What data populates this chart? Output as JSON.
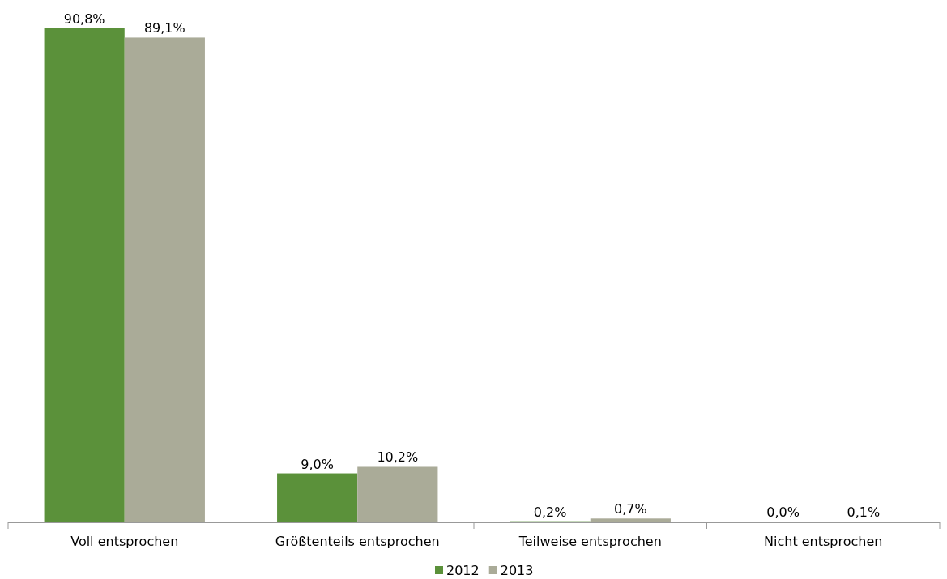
{
  "chart_data": {
    "type": "bar",
    "categories": [
      "Voll entsprochen",
      "Größtenteils entsprochen",
      "Teilweise entsprochen",
      "Nicht entsprochen"
    ],
    "series": [
      {
        "name": "2012",
        "color": "#5b913a",
        "values": [
          90.8,
          9.0,
          0.2,
          0.0
        ],
        "value_labels": [
          "90,8%",
          "9,0%",
          "0,2%",
          "0,0%"
        ]
      },
      {
        "name": "2013",
        "color": "#aaab98",
        "values": [
          89.1,
          10.2,
          0.7,
          0.1
        ],
        "value_labels": [
          "89,1%",
          "10,2%",
          "0,7%",
          "0,1%"
        ]
      }
    ],
    "relative": false,
    "legend": "bottom",
    "grid": false
  }
}
